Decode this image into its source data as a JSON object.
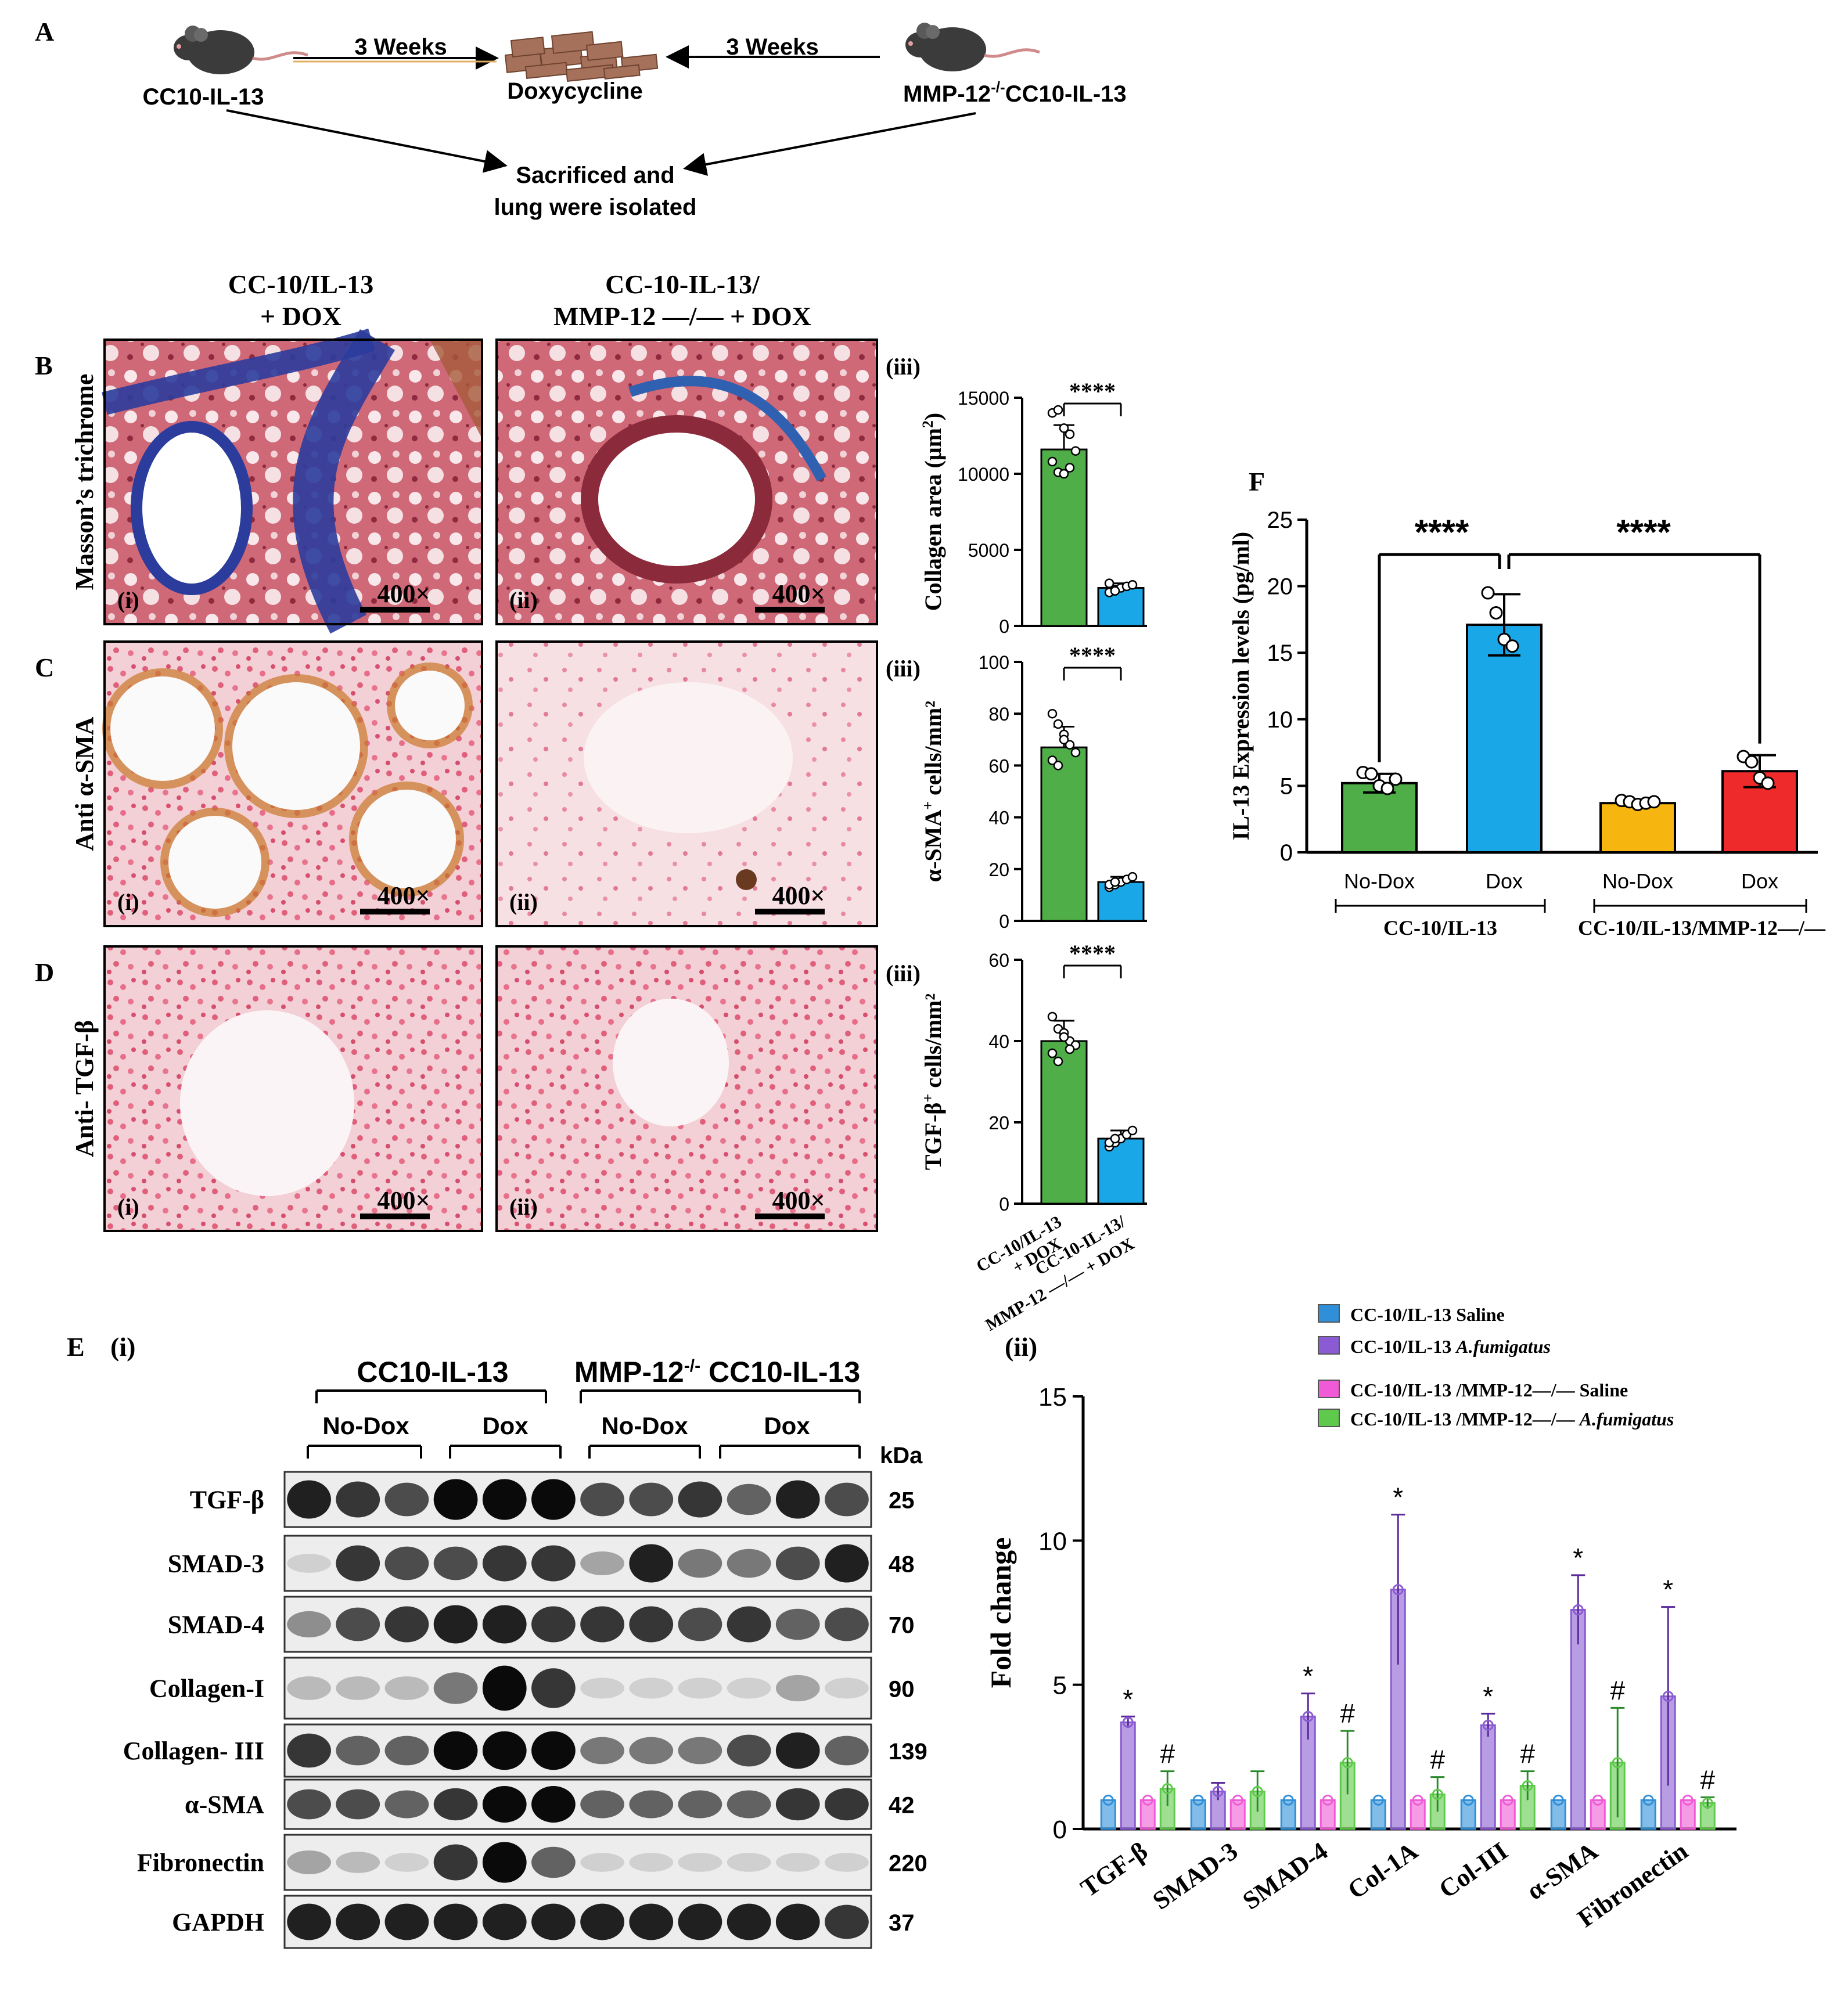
{
  "colors": {
    "green": "#4fae48",
    "blue": "#1aa7e8",
    "orange": "#f6b60f",
    "red": "#ef2a2a",
    "e_saline": "#2f8fd8",
    "e_afum": "#8a5bd2",
    "e_mmp_saline": "#f05ad6",
    "e_mmp_afum": "#5ec94a",
    "trichrome_bg": "#d0707f",
    "ihc_bg": "#f2c8cf"
  },
  "panelA": {
    "label": "A",
    "arrow_left": "3 Weeks",
    "arrow_right": "3 Weeks",
    "left_mouse": "CC10-IL-13",
    "center": "Doxycycline",
    "right_mouse_pre": "MMP-12",
    "right_mouse_sup": "-/-",
    "right_mouse_post": "CC10-IL-13",
    "result_line1": "Sacrificed and",
    "result_line2": "lung were isolated",
    "icons": [
      "mouse-icon",
      "doxycycline-pellets-icon",
      "mouse-icon"
    ]
  },
  "histology": {
    "col1_line1": "CC-10/IL-13",
    "col1_line2": "+ DOX",
    "col2_line1": "CC-10-IL-13/",
    "col2_line2": "MMP-12 —/— + DOX",
    "magnification": "400×",
    "sub_i": "(i)",
    "sub_ii": "(ii)",
    "sub_iii": "(iii)",
    "rows": [
      {
        "label": "B",
        "stain": "Masson’s trichrome"
      },
      {
        "label": "C",
        "stain": "Anti α-SMA"
      },
      {
        "label": "D",
        "stain": "Anti- TGF-β"
      }
    ],
    "xtick_1_line1": "CC-10/IL-13",
    "xtick_1_line2": "+ DOX",
    "xtick_2_line1": "CC-10-IL-13/",
    "xtick_2_line2": "MMP-12 —/— + DOX"
  },
  "chart_data": [
    {
      "id": "B-iii",
      "type": "bar",
      "ylabel_pre": "Collagen area (μm",
      "ylabel_sup": "2",
      "ylabel_post": ")",
      "categories": [
        "CC-10/IL-13 + DOX",
        "CC-10-IL-13/MMP-12 —/— + DOX"
      ],
      "values": [
        11600,
        2500
      ],
      "errors": [
        1600,
        300
      ],
      "points": [
        [
          14000,
          14200,
          13000,
          12600,
          11500,
          10800,
          10100,
          10000,
          10400
        ],
        [
          2200,
          2400,
          2500,
          2600,
          2700,
          2800,
          2300
        ]
      ],
      "ylim": [
        0,
        15000
      ],
      "yticks": [
        0,
        5000,
        10000,
        15000
      ],
      "significance": "****"
    },
    {
      "id": "C-iii",
      "type": "bar",
      "ylabel_pre": "α-SMA",
      "ylabel_sup": "+",
      "ylabel_post": " cells/mm²",
      "categories": [
        "CC-10/IL-13 + DOX",
        "CC-10-IL-13/MMP-12 —/— + DOX"
      ],
      "values": [
        67,
        15
      ],
      "errors": [
        8,
        2
      ],
      "points": [
        [
          80,
          76,
          72,
          68,
          65,
          62,
          60,
          70
        ],
        [
          13,
          14,
          15,
          16,
          17,
          14,
          15
        ]
      ],
      "ylim": [
        0,
        100
      ],
      "yticks": [
        0,
        20,
        40,
        60,
        80,
        100
      ],
      "significance": "****"
    },
    {
      "id": "D-iii",
      "type": "bar",
      "ylabel_pre": "TGF-β",
      "ylabel_sup": "+",
      "ylabel_post": " cells/mm²",
      "categories": [
        "CC-10/IL-13 + DOX",
        "CC-10-IL-13/MMP-12 —/— + DOX"
      ],
      "values": [
        40,
        16
      ],
      "errors": [
        5,
        2
      ],
      "points": [
        [
          46,
          43,
          42,
          40,
          39,
          37,
          35,
          41,
          38
        ],
        [
          14,
          15,
          16,
          17,
          18,
          15,
          16
        ]
      ],
      "ylim": [
        0,
        60
      ],
      "yticks": [
        0,
        20,
        40,
        60
      ],
      "significance": "****"
    },
    {
      "id": "F",
      "type": "bar",
      "ylabel": "IL-13 Expression levels (pg/ml)",
      "categories": [
        "No-Dox",
        "Dox",
        "No-Dox",
        "Dox"
      ],
      "groups": [
        {
          "label": "CC-10/IL-13"
        },
        {
          "label": "CC-10/IL-13/MMP-12—/—"
        }
      ],
      "values": [
        5.2,
        17.1,
        3.7,
        6.1
      ],
      "errors": [
        0.7,
        2.3,
        0.2,
        1.2
      ],
      "points": [
        [
          6.0,
          5.9,
          5.0,
          4.8,
          5.5
        ],
        [
          19.5,
          18.0,
          16.0,
          15.5
        ],
        [
          3.9,
          3.8,
          3.6,
          3.7,
          3.8
        ],
        [
          7.2,
          6.8,
          5.6,
          5.2
        ]
      ],
      "ylim": [
        0,
        25
      ],
      "yticks": [
        0,
        5,
        10,
        15,
        20,
        25
      ],
      "significance": [
        "****",
        "****"
      ]
    },
    {
      "id": "E-ii",
      "type": "bar",
      "ylabel": "Fold change",
      "categories": [
        "TGF-β",
        "SMAD-3",
        "SMAD-4",
        "Col-1A",
        "Col-III",
        "α-SMA",
        "Fibronectin"
      ],
      "series": [
        {
          "name": "CC-10/IL-13 Saline",
          "values": [
            1,
            1,
            1,
            1,
            1,
            1,
            1
          ],
          "errors": [
            0,
            0,
            0,
            0,
            0,
            0,
            0
          ],
          "marks": [
            "",
            "",
            "",
            "",
            "",
            "",
            ""
          ]
        },
        {
          "name": "CC-10/IL-13 A.fumigatus",
          "values": [
            3.7,
            1.3,
            3.9,
            8.3,
            3.6,
            7.6,
            4.6
          ],
          "errors": [
            0.2,
            0.3,
            0.8,
            2.6,
            0.4,
            1.2,
            3.1
          ],
          "marks": [
            "*",
            "",
            "*",
            "*",
            "*",
            "*",
            "*"
          ]
        },
        {
          "name": "CC-10/IL-13 /MMP-12—/— Saline",
          "values": [
            1,
            1,
            1,
            1,
            1,
            1,
            1
          ],
          "errors": [
            0,
            0,
            0,
            0,
            0,
            0,
            0
          ],
          "marks": [
            "",
            "",
            "",
            "",
            "",
            "",
            ""
          ]
        },
        {
          "name": "CC-10/IL-13 /MMP-12—/— A.fumigatus",
          "values": [
            1.4,
            1.3,
            2.3,
            1.2,
            1.5,
            2.3,
            0.9
          ],
          "errors": [
            0.6,
            0.7,
            1.1,
            0.6,
            0.5,
            1.9,
            0.2
          ],
          "marks": [
            "#",
            "",
            "#",
            "#",
            "#",
            "#",
            "#"
          ]
        }
      ],
      "ylim": [
        0,
        15
      ],
      "yticks": [
        0,
        5,
        10,
        15
      ]
    }
  ],
  "legendE": [
    {
      "pre": "CC-10/IL-13 Saline",
      "ital": ""
    },
    {
      "pre": "CC-10/IL-13 ",
      "ital": "A.fumigatus"
    },
    {
      "pre": "CC-10/IL-13 /MMP-12—/— Saline",
      "ital": ""
    },
    {
      "pre": "CC-10/IL-13 /MMP-12—/— ",
      "ital": "A.fumigatus"
    }
  ],
  "panelE": {
    "label": "E",
    "sub_i": "(i)",
    "sub_ii": "(ii)",
    "group1": "CC10-IL-13",
    "group2_pre": "MMP-12",
    "group2_sup": "-/-",
    "group2_post": " CC10-IL-13",
    "nodox": "No-Dox",
    "dox": "Dox",
    "kda": "kDa",
    "panelF_label": "F"
  },
  "blots": [
    {
      "label": "TGF-β",
      "kda": "25",
      "intensity": [
        0.9,
        0.8,
        0.7,
        1.0,
        1.0,
        1.0,
        0.7,
        0.7,
        0.8,
        0.6,
        0.9,
        0.7
      ]
    },
    {
      "label": "SMAD-3",
      "kda": "48",
      "intensity": [
        0.1,
        0.8,
        0.7,
        0.7,
        0.8,
        0.8,
        0.3,
        0.9,
        0.5,
        0.5,
        0.7,
        0.9
      ]
    },
    {
      "label": "SMAD-4",
      "kda": "70",
      "intensity": [
        0.4,
        0.7,
        0.8,
        0.9,
        0.9,
        0.8,
        0.8,
        0.8,
        0.7,
        0.8,
        0.6,
        0.7
      ]
    },
    {
      "label": "Collagen-I",
      "kda": "90",
      "intensity": [
        0.2,
        0.2,
        0.2,
        0.5,
        1.0,
        0.8,
        0.1,
        0.1,
        0.1,
        0.1,
        0.3,
        0.1
      ]
    },
    {
      "label": "Collagen- III",
      "kda": "139",
      "intensity": [
        0.8,
        0.6,
        0.6,
        1.0,
        1.0,
        1.0,
        0.5,
        0.5,
        0.5,
        0.7,
        0.9,
        0.6
      ]
    },
    {
      "label": "α-SMA",
      "kda": "42",
      "intensity": [
        0.7,
        0.7,
        0.6,
        0.8,
        1.0,
        1.0,
        0.6,
        0.6,
        0.6,
        0.6,
        0.8,
        0.8
      ]
    },
    {
      "label": "Fibronectin",
      "kda": "220",
      "intensity": [
        0.3,
        0.2,
        0.1,
        0.8,
        1.0,
        0.6,
        0.1,
        0.1,
        0.1,
        0.1,
        0.1,
        0.1
      ]
    },
    {
      "label": "GAPDH",
      "kda": "37",
      "intensity": [
        0.9,
        0.9,
        0.9,
        0.9,
        0.9,
        0.9,
        0.9,
        0.9,
        0.9,
        0.9,
        0.9,
        0.8
      ]
    }
  ]
}
